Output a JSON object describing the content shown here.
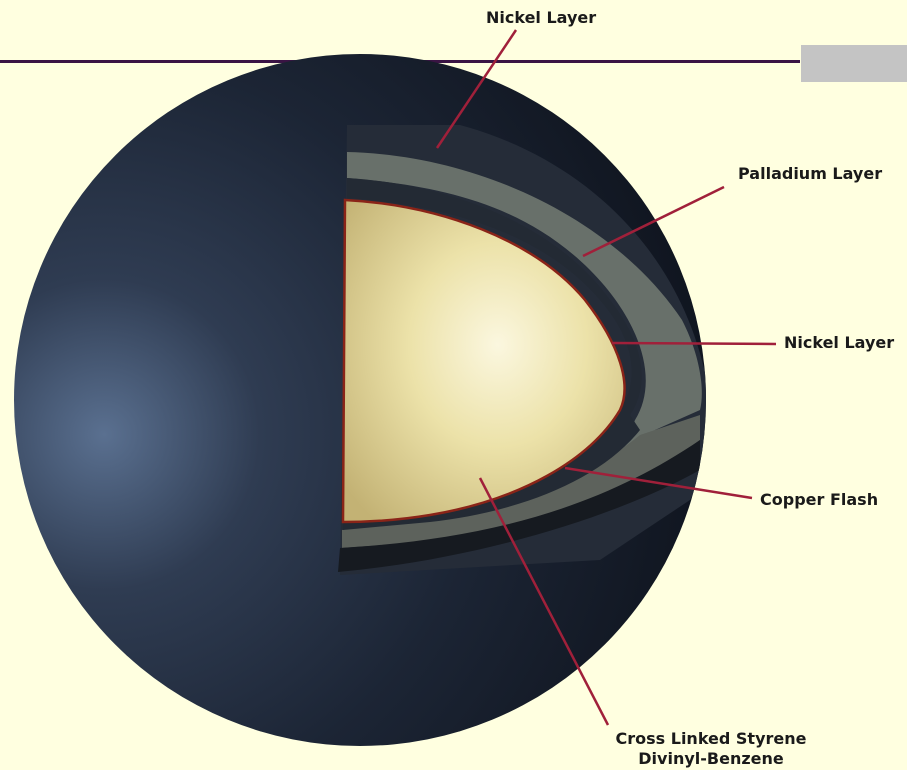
{
  "labels": {
    "nickel_outer": "Nickel Layer",
    "palladium": "Palladium Layer",
    "nickel_inner": "Nickel Layer",
    "copper": "Copper Flash",
    "core_line1": "Cross Linked Styrene",
    "core_line2": "Divinyl-Benzene"
  },
  "colors": {
    "background": "#ffffe0",
    "rule": "#3a1444",
    "shell": "#1f2a3a",
    "palladium_band": "#6a6f66",
    "core": "#e8dca0",
    "copper_line": "#a02020",
    "leader": "#a0203a"
  }
}
